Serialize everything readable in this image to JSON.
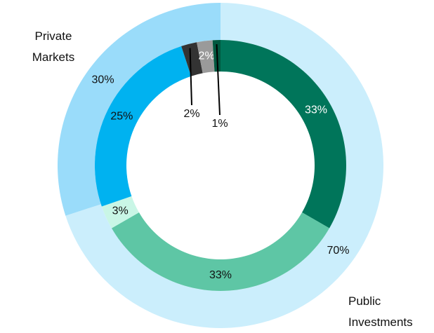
{
  "chart_data": {
    "type": "nested-donut",
    "outer": {
      "categories": [
        "Public Investments",
        "Private Markets"
      ],
      "values": [
        70,
        30
      ],
      "value_labels": [
        "70%",
        "30%"
      ],
      "colors": [
        "#cbeefc",
        "#9adcfa"
      ]
    },
    "inner": {
      "values": [
        33,
        33,
        3,
        25,
        2,
        2,
        1
      ],
      "value_labels": [
        "33%",
        "33%",
        "3%",
        "25%",
        "2%",
        "2%",
        "1%"
      ],
      "colors": [
        "#00755a",
        "#5ec6a5",
        "#c9f6e6",
        "#00b2f0",
        "#333333",
        "#9a9a9a",
        "#00583f"
      ]
    }
  }
}
